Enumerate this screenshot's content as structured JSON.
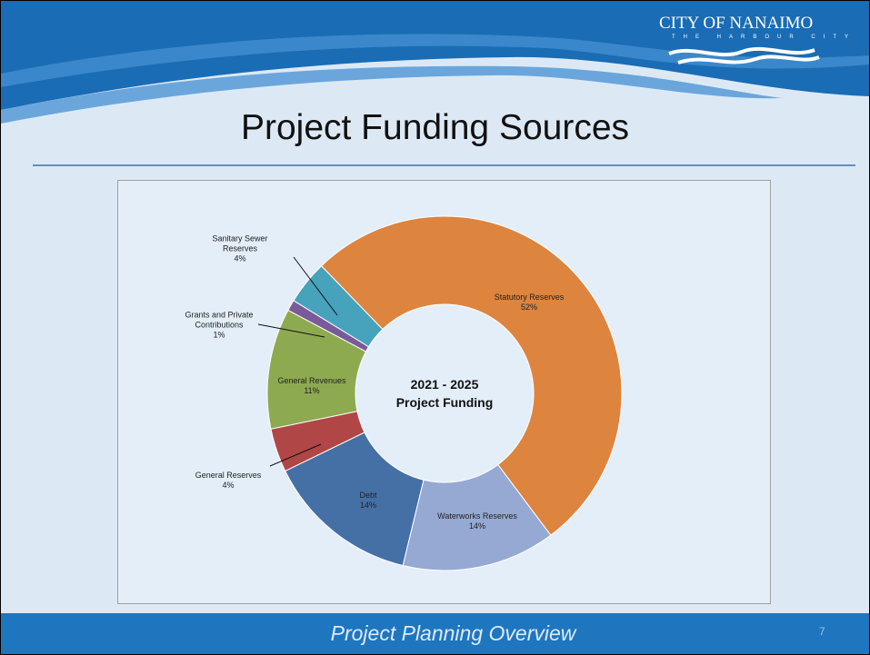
{
  "slide": {
    "title": "Project Funding Sources",
    "footer": "Project Planning Overview",
    "page_number": "7",
    "logo": {
      "name": "CITY OF NANAIMO",
      "tagline": "THE HARBOUR CITY"
    }
  },
  "chart_data": {
    "type": "donut",
    "center_label": [
      "2021 - 2025",
      "Project Funding"
    ],
    "categories": [
      "Statutory Reserves",
      "Waterworks Reserves",
      "Debt",
      "General Reserves",
      "General Revenues",
      "Grants and Private Contributions",
      "Sanitary Sewer Reserves"
    ],
    "values": [
      52,
      14,
      14,
      4,
      11,
      1,
      4
    ],
    "value_labels": [
      "52%",
      "14%",
      "14%",
      "4%",
      "11%",
      "1%",
      "4%"
    ],
    "colors": [
      "#dd843f",
      "#95a9d3",
      "#4570a6",
      "#b04646",
      "#8eaa50",
      "#7a5a98",
      "#47a2bb"
    ]
  }
}
